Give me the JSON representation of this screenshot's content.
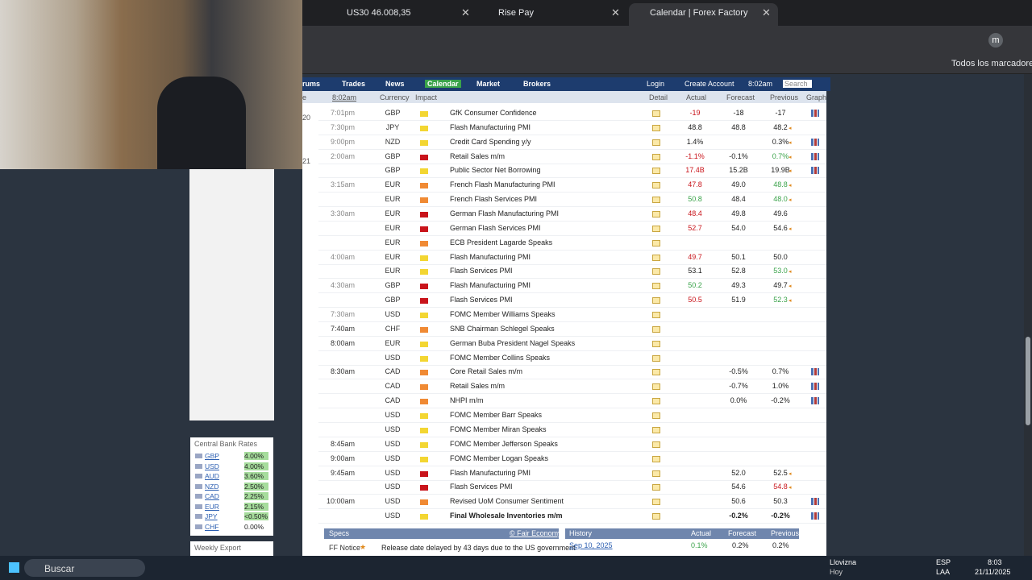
{
  "browser": {
    "tabs": [
      "US30 46.008,35",
      "Rise Pay",
      "Calendar | Forex Factory"
    ],
    "profile": "m",
    "bookmarks": "Todos los marcadores"
  },
  "nav": {
    "items": [
      "rums",
      "Trades",
      "News",
      "Calendar",
      "Market",
      "Brokers"
    ],
    "login": "Login",
    "create": "Create Account",
    "time": "8:02am",
    "search": "Search"
  },
  "calendar": {
    "header": [
      "e",
      "8:02am",
      "Currency",
      "Impact",
      "Detail",
      "Actual",
      "Forecast",
      "Previous",
      "Graph"
    ],
    "dates": [
      {
        "row": 0,
        "label": "20"
      },
      {
        "row": 3,
        "label": "21"
      }
    ],
    "rows": [
      {
        "time": "7:01pm",
        "currency": "GBP",
        "impact": "yellow",
        "event": "GfK Consumer Confidence",
        "actual": "-19",
        "actual_tone": "worse",
        "forecast": "-18",
        "previous": "-17",
        "graph": true
      },
      {
        "time": "7:30pm",
        "currency": "JPY",
        "impact": "yellow",
        "event": "Flash Manufacturing PMI",
        "actual": "48.8",
        "forecast": "48.8",
        "previous": "48.2",
        "previous_mark": "revised"
      },
      {
        "time": "9:00pm",
        "currency": "NZD",
        "impact": "yellow",
        "event": "Credit Card Spending y/y",
        "actual": "1.4%",
        "previous": "0.3%",
        "previous_mark": "revised",
        "graph": true
      },
      {
        "time": "2:00am",
        "currency": "GBP",
        "impact": "red",
        "event": "Retail Sales m/m",
        "actual": "-1.1%",
        "actual_tone": "worse",
        "forecast": "-0.1%",
        "previous": "0.7%",
        "previous_mark": "better",
        "graph": true
      },
      {
        "currency": "GBP",
        "impact": "yellow",
        "event": "Public Sector Net Borrowing",
        "actual": "17.4B",
        "actual_tone": "worse",
        "forecast": "15.2B",
        "previous": "19.9B",
        "previous_mark": "revised",
        "graph": true
      },
      {
        "time": "3:15am",
        "currency": "EUR",
        "impact": "orange",
        "event": "French Flash Manufacturing PMI",
        "actual": "47.8",
        "actual_tone": "worse",
        "forecast": "49.0",
        "previous": "48.8",
        "previous_mark": "better"
      },
      {
        "currency": "EUR",
        "impact": "orange",
        "event": "French Flash Services PMI",
        "actual": "50.8",
        "actual_tone": "better",
        "forecast": "48.4",
        "previous": "48.0",
        "previous_mark": "better"
      },
      {
        "time": "3:30am",
        "currency": "EUR",
        "impact": "red",
        "event": "German Flash Manufacturing PMI",
        "actual": "48.4",
        "actual_tone": "worse",
        "forecast": "49.8",
        "previous": "49.6"
      },
      {
        "currency": "EUR",
        "impact": "red",
        "event": "German Flash Services PMI",
        "actual": "52.7",
        "actual_tone": "worse",
        "forecast": "54.0",
        "previous": "54.6",
        "previous_mark": "revised"
      },
      {
        "currency": "EUR",
        "impact": "orange",
        "event": "ECB President Lagarde Speaks"
      },
      {
        "time": "4:00am",
        "currency": "EUR",
        "impact": "yellow",
        "event": "Flash Manufacturing PMI",
        "actual": "49.7",
        "actual_tone": "worse",
        "forecast": "50.1",
        "previous": "50.0"
      },
      {
        "currency": "EUR",
        "impact": "yellow",
        "event": "Flash Services PMI",
        "actual": "53.1",
        "forecast": "52.8",
        "previous": "53.0",
        "previous_mark": "better"
      },
      {
        "time": "4:30am",
        "currency": "GBP",
        "impact": "red",
        "event": "Flash Manufacturing PMI",
        "actual": "50.2",
        "actual_tone": "better",
        "forecast": "49.3",
        "previous": "49.7",
        "previous_mark": "revised"
      },
      {
        "currency": "GBP",
        "impact": "red",
        "event": "Flash Services PMI",
        "actual": "50.5",
        "actual_tone": "worse",
        "forecast": "51.9",
        "previous": "52.3",
        "previous_mark": "better"
      },
      {
        "time": "7:30am",
        "currency": "USD",
        "impact": "yellow",
        "event": "FOMC Member Williams Speaks"
      },
      {
        "time": "7:40am",
        "currency": "CHF",
        "impact": "orange",
        "event": "SNB Chairman Schlegel Speaks"
      },
      {
        "time": "8:00am",
        "currency": "EUR",
        "impact": "yellow",
        "event": "German Buba President Nagel Speaks"
      },
      {
        "currency": "USD",
        "impact": "yellow",
        "event": "FOMC Member Collins Speaks"
      },
      {
        "time": "8:30am",
        "currency": "CAD",
        "impact": "orange",
        "event": "Core Retail Sales m/m",
        "forecast": "-0.5%",
        "previous": "0.7%",
        "graph": true
      },
      {
        "currency": "CAD",
        "impact": "orange",
        "event": "Retail Sales m/m",
        "forecast": "-0.7%",
        "previous": "1.0%",
        "graph": true
      },
      {
        "currency": "CAD",
        "impact": "orange",
        "event": "NHPI m/m",
        "forecast": "0.0%",
        "previous": "-0.2%",
        "graph": true
      },
      {
        "currency": "USD",
        "impact": "yellow",
        "event": "FOMC Member Barr Speaks"
      },
      {
        "currency": "USD",
        "impact": "yellow",
        "event": "FOMC Member Miran Speaks"
      },
      {
        "time": "8:45am",
        "currency": "USD",
        "impact": "yellow",
        "event": "FOMC Member Jefferson Speaks"
      },
      {
        "time": "9:00am",
        "currency": "USD",
        "impact": "yellow",
        "event": "FOMC Member Logan Speaks"
      },
      {
        "time": "9:45am",
        "currency": "USD",
        "impact": "red",
        "event": "Flash Manufacturing PMI",
        "forecast": "52.0",
        "previous": "52.5",
        "previous_mark": "revised"
      },
      {
        "currency": "USD",
        "impact": "red",
        "event": "Flash Services PMI",
        "forecast": "54.6",
        "previous": "54.8",
        "previous_mark": "worse"
      },
      {
        "time": "10:00am",
        "currency": "USD",
        "impact": "orange",
        "event": "Revised UoM Consumer Sentiment",
        "forecast": "50.6",
        "previous": "50.3",
        "graph": true
      },
      {
        "currency": "USD",
        "impact": "yellow",
        "event": "Final Wholesale Inventories m/m",
        "forecast": "-0.2%",
        "previous": "-0.2%",
        "graph": true,
        "bold": true
      }
    ]
  },
  "rates": {
    "title": "Central Bank Rates",
    "items": [
      {
        "code": "GBP",
        "rate": "4.00%"
      },
      {
        "code": "USD",
        "rate": "4.00%"
      },
      {
        "code": "AUD",
        "rate": "3.60%"
      },
      {
        "code": "NZD",
        "rate": "2.50%"
      },
      {
        "code": "CAD",
        "rate": "2.25%"
      },
      {
        "code": "EUR",
        "rate": "2.15%"
      },
      {
        "code": "JPY",
        "rate": "<0.50%"
      },
      {
        "code": "CHF",
        "rate": "0.00%"
      }
    ],
    "export": "Weekly Export"
  },
  "specs": {
    "title": "Specs",
    "credit": "© Fair Economy",
    "notice_label": "FF Notice",
    "notice": "Release date delayed by 43 days due to the US government"
  },
  "history": {
    "title": "History",
    "columns": [
      "Actual",
      "Forecast",
      "Previous"
    ],
    "date": "Sep 10, 2025",
    "actual": "0.1%",
    "forecast": "0.2%",
    "previous": "0.2%"
  },
  "taskbar": {
    "search": "Buscar",
    "weather": "Llovizna",
    "weather_sub": "Hoy",
    "lang": "ESP",
    "layout": "LAA",
    "time": "8:03",
    "date": "21/11/2025"
  }
}
